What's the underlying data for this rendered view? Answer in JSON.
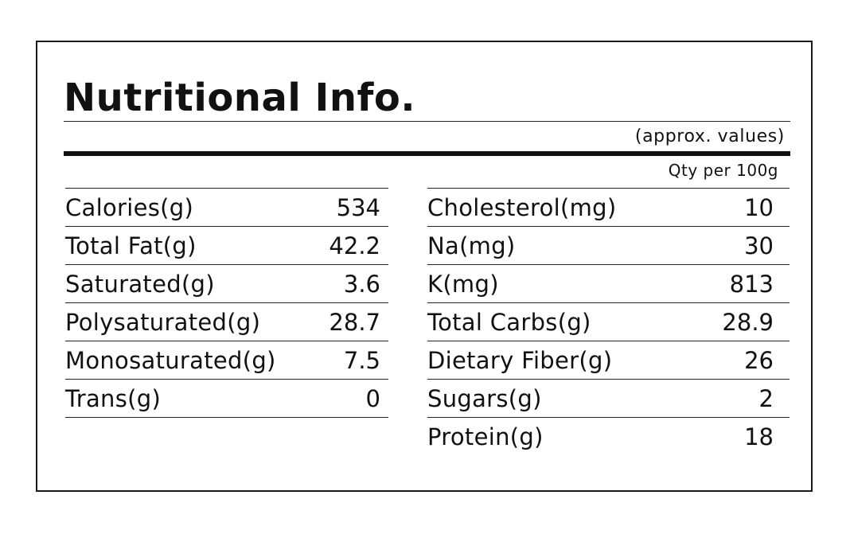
{
  "title": "Nutritional Info.",
  "subtitle": "(approx. values)",
  "quantity_note": "Qty per 100g",
  "left_rows": [
    {
      "label": "Calories(g)",
      "value": "534"
    },
    {
      "label": "Total Fat(g)",
      "value": "42.2"
    },
    {
      "label": "Saturated(g)",
      "value": "3.6"
    },
    {
      "label": "Polysaturated(g)",
      "value": "28.7"
    },
    {
      "label": "Monosaturated(g)",
      "value": "7.5"
    },
    {
      "label": "Trans(g)",
      "value": "0"
    }
  ],
  "right_rows": [
    {
      "label": "Cholesterol(mg)",
      "value": "10"
    },
    {
      "label": "Na(mg)",
      "value": "30"
    },
    {
      "label": "K(mg)",
      "value": "813"
    },
    {
      "label": "Total Carbs(g)",
      "value": "28.9"
    },
    {
      "label": "Dietary Fiber(g)",
      "value": "26"
    },
    {
      "label": "Sugars(g)",
      "value": "2"
    },
    {
      "label": "Protein(g)",
      "value": "18"
    }
  ]
}
